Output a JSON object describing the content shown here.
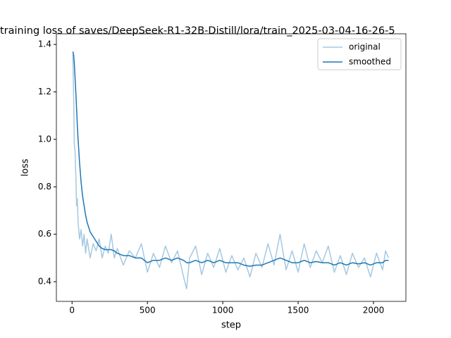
{
  "chart_data": {
    "type": "line",
    "title": "training loss of saves/DeepSeek-R1-32B-Distill/lora/train_2025-03-04-16-26-5",
    "xlabel": "step",
    "ylabel": "loss",
    "x": [
      5,
      10,
      15,
      20,
      25,
      30,
      35,
      40,
      50,
      60,
      70,
      80,
      90,
      100,
      120,
      140,
      160,
      180,
      200,
      220,
      240,
      260,
      280,
      300,
      340,
      380,
      420,
      460,
      500,
      540,
      580,
      620,
      660,
      700,
      740,
      760,
      780,
      820,
      860,
      900,
      940,
      980,
      1020,
      1060,
      1100,
      1140,
      1180,
      1220,
      1260,
      1300,
      1340,
      1380,
      1420,
      1460,
      1500,
      1540,
      1580,
      1620,
      1660,
      1700,
      1740,
      1780,
      1820,
      1860,
      1900,
      1940,
      1980,
      2020,
      2060,
      2080,
      2100
    ],
    "series": [
      {
        "name": "original",
        "color": "#a5c8e1",
        "values": [
          1.36,
          1.2,
          0.98,
          0.95,
          0.85,
          0.72,
          0.75,
          0.65,
          0.58,
          0.62,
          0.55,
          0.6,
          0.52,
          0.58,
          0.5,
          0.56,
          0.53,
          0.58,
          0.5,
          0.55,
          0.52,
          0.6,
          0.5,
          0.54,
          0.47,
          0.53,
          0.5,
          0.56,
          0.44,
          0.52,
          0.46,
          0.55,
          0.48,
          0.53,
          0.42,
          0.37,
          0.5,
          0.55,
          0.43,
          0.52,
          0.46,
          0.54,
          0.44,
          0.51,
          0.45,
          0.5,
          0.42,
          0.52,
          0.46,
          0.56,
          0.47,
          0.6,
          0.45,
          0.53,
          0.44,
          0.56,
          0.46,
          0.53,
          0.48,
          0.55,
          0.44,
          0.51,
          0.43,
          0.52,
          0.46,
          0.5,
          0.42,
          0.52,
          0.45,
          0.53,
          0.5
        ]
      },
      {
        "name": "smoothed",
        "color": "#1f77b4",
        "values": [
          1.37,
          1.36,
          1.32,
          1.26,
          1.2,
          1.13,
          1.06,
          1.0,
          0.9,
          0.82,
          0.76,
          0.72,
          0.68,
          0.65,
          0.61,
          0.59,
          0.57,
          0.55,
          0.54,
          0.535,
          0.535,
          0.535,
          0.53,
          0.52,
          0.51,
          0.51,
          0.5,
          0.5,
          0.48,
          0.49,
          0.49,
          0.5,
          0.49,
          0.5,
          0.49,
          0.48,
          0.48,
          0.49,
          0.48,
          0.49,
          0.48,
          0.49,
          0.48,
          0.48,
          0.48,
          0.47,
          0.465,
          0.47,
          0.47,
          0.48,
          0.49,
          0.5,
          0.49,
          0.48,
          0.48,
          0.49,
          0.48,
          0.485,
          0.48,
          0.48,
          0.47,
          0.48,
          0.47,
          0.48,
          0.475,
          0.48,
          0.47,
          0.48,
          0.48,
          0.49,
          0.49
        ]
      }
    ],
    "xlim": [
      -104,
      2215
    ],
    "ylim": [
      0.317,
      1.445
    ],
    "xticks": [
      0,
      500,
      1000,
      1500,
      2000
    ],
    "yticks": [
      0.4,
      0.6,
      0.8,
      {
        "value": 1,
        "label": "1.0"
      },
      1.2,
      1.4
    ],
    "legend": "upper right",
    "grid": false
  }
}
